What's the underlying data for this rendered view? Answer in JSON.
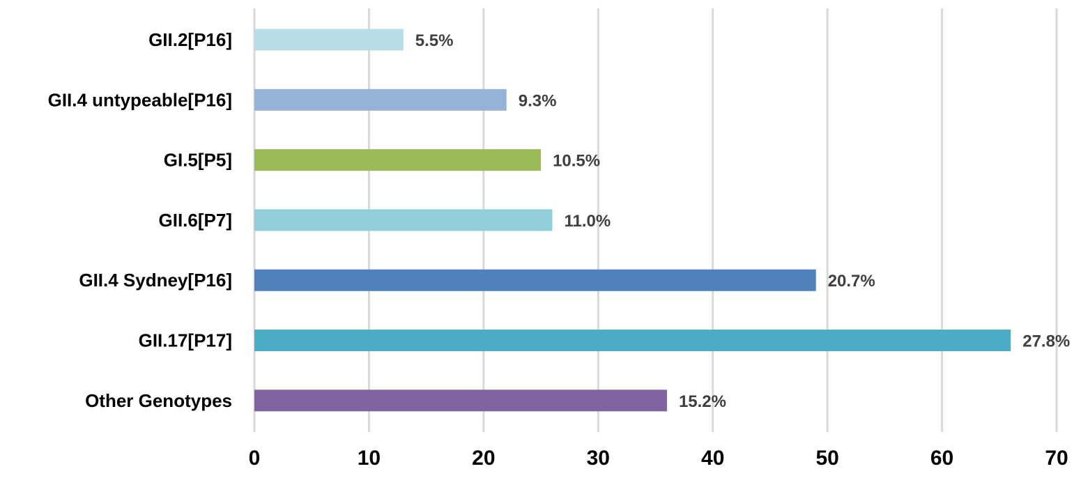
{
  "chart_data": {
    "type": "bar",
    "orientation": "horizontal",
    "title": "",
    "xlabel": "",
    "ylabel": "",
    "categories": [
      "GII.2[P16]",
      "GII.4 untypeable[P16]",
      "GI.5[P5]",
      "GII.6[P7]",
      "GII.4 Sydney[P16]",
      "GII.17[P17]",
      "Other Genotypes"
    ],
    "values": [
      13,
      22,
      25,
      26,
      49,
      66,
      36
    ],
    "data_labels": [
      "5.5%",
      "9.3%",
      "10.5%",
      "11.0%",
      "20.7%",
      "27.8%",
      "15.2%"
    ],
    "colors": [
      "#b7dde8",
      "#95b3d7",
      "#9bbb59",
      "#92cddc",
      "#4f81bd",
      "#4bacc6",
      "#8064a2"
    ],
    "xlim": [
      0,
      70
    ],
    "x_ticks": [
      "0",
      "10",
      "20",
      "30",
      "40",
      "50",
      "60",
      "70"
    ],
    "grid": true,
    "legend": "none"
  }
}
